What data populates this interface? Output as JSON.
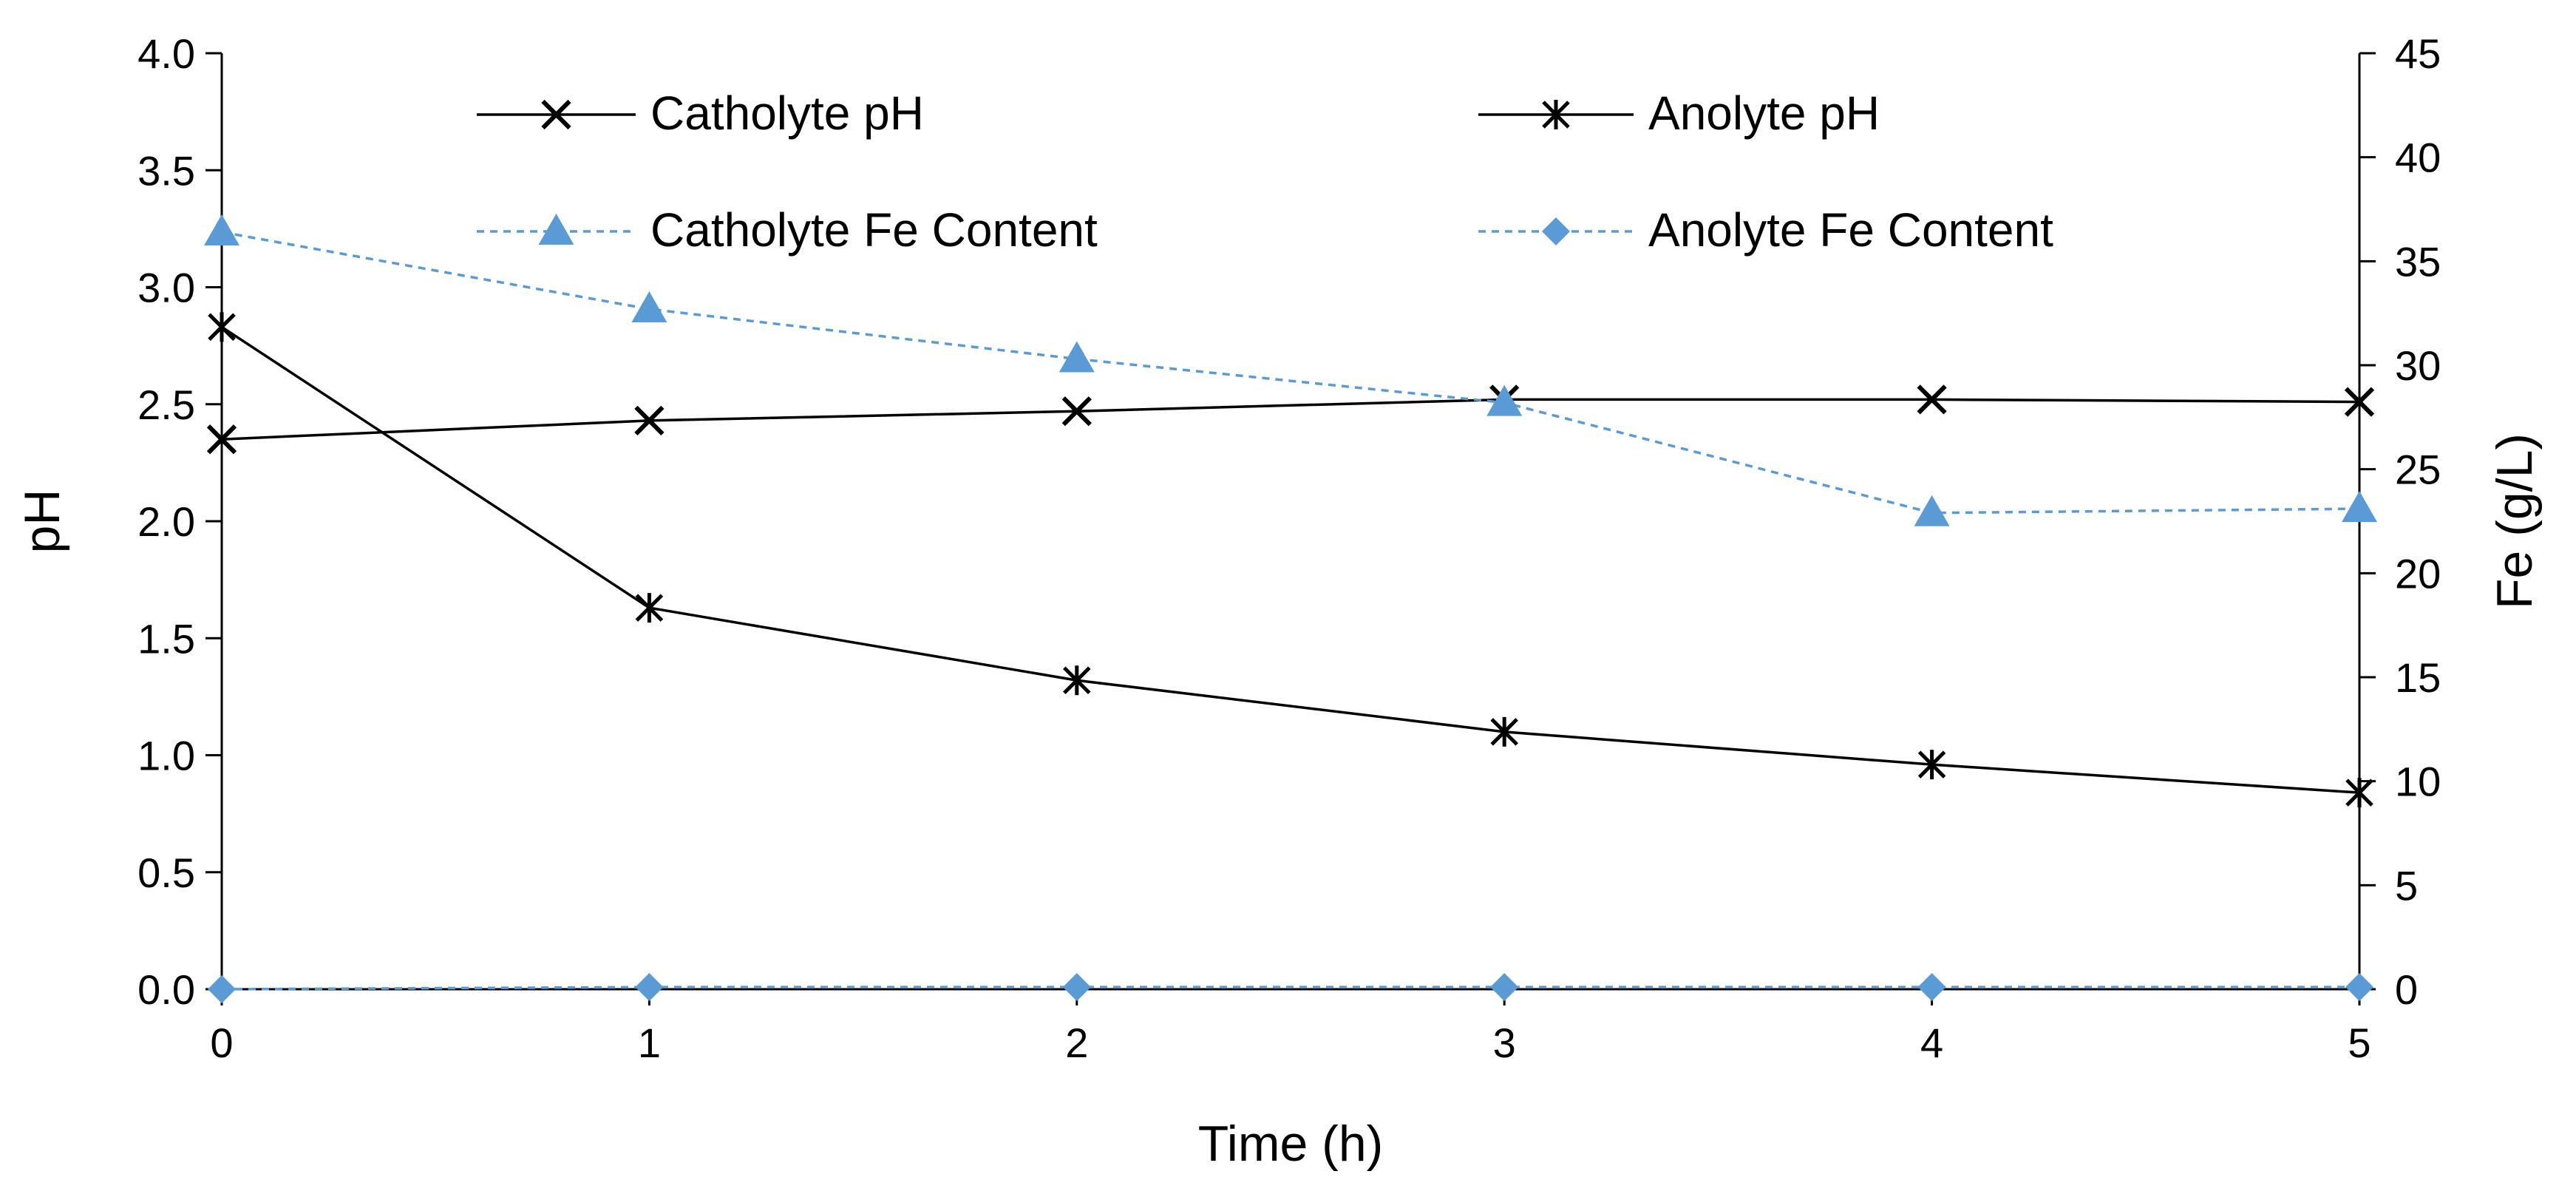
{
  "chart_data": {
    "type": "line",
    "xlabel": "Time (h)",
    "ylabel": "pH",
    "y2label": "Fe (g/L)",
    "x": [
      0,
      1,
      2,
      3,
      4,
      5
    ],
    "x_ticks": [
      "0",
      "1",
      "2",
      "3",
      "4",
      "5"
    ],
    "xlim": [
      0,
      5
    ],
    "ylim": [
      0,
      4
    ],
    "y_ticks": [
      "0.0",
      "0.5",
      "1.0",
      "1.5",
      "2.0",
      "2.5",
      "3.0",
      "3.5",
      "4.0"
    ],
    "y2lim": [
      0,
      45
    ],
    "y2_ticks": [
      "0",
      "5",
      "10",
      "15",
      "20",
      "25",
      "30",
      "35",
      "40",
      "45"
    ],
    "grid": false,
    "legend_position": "top",
    "colors": {
      "black": "#000000",
      "blue": "#5B9BD5"
    },
    "series": [
      {
        "name": "Catholyte pH",
        "axis": "left",
        "values": [
          2.35,
          2.43,
          2.47,
          2.52,
          2.52,
          2.51
        ],
        "marker": "x",
        "line": "solid",
        "color": "#000000"
      },
      {
        "name": "Anolyte pH",
        "axis": "left",
        "values": [
          2.83,
          1.63,
          1.32,
          1.1,
          0.96,
          0.84
        ],
        "marker": "asterisk",
        "line": "solid",
        "color": "#000000"
      },
      {
        "name": "Catholyte Fe Content",
        "axis": "right",
        "values": [
          36.4,
          32.7,
          30.3,
          28.2,
          22.9,
          23.1
        ],
        "marker": "triangle",
        "line": "dashed",
        "color": "#5B9BD5"
      },
      {
        "name": "Anolyte Fe Content",
        "axis": "right",
        "values": [
          0.0,
          0.1,
          0.1,
          0.1,
          0.1,
          0.1
        ],
        "marker": "diamond",
        "line": "dashed",
        "color": "#5B9BD5"
      }
    ]
  }
}
